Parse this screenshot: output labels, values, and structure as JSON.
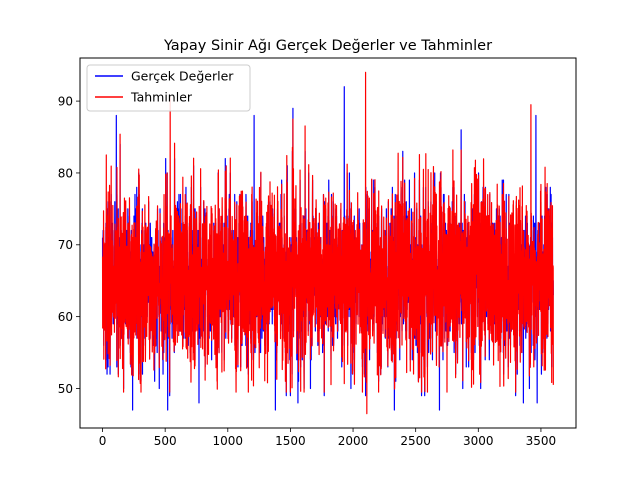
{
  "chart_data": {
    "type": "line",
    "title": "Yapay Sinir Ağı Gerçek Değerler ve Tahminler",
    "xlabel": "",
    "ylabel": "",
    "xlim": [
      -180,
      3780
    ],
    "ylim": [
      44.5,
      96
    ],
    "x_ticks": [
      0,
      500,
      1000,
      1500,
      2000,
      2500,
      3000,
      3500
    ],
    "y_ticks": [
      50,
      60,
      70,
      80,
      90
    ],
    "grid": false,
    "legend": "top-left",
    "n_points": 3600,
    "series": [
      {
        "name": "Gerçek Değerler",
        "color": "#0000ff",
        "mean": 65.5,
        "min": 47,
        "max": 92,
        "extremes": [
          {
            "x": 110,
            "y": 88
          },
          {
            "x": 240,
            "y": 47
          },
          {
            "x": 520,
            "y": 47
          },
          {
            "x": 770,
            "y": 48
          },
          {
            "x": 1210,
            "y": 88
          },
          {
            "x": 1380,
            "y": 47
          },
          {
            "x": 1520,
            "y": 89
          },
          {
            "x": 1560,
            "y": 48
          },
          {
            "x": 1930,
            "y": 92
          },
          {
            "x": 2330,
            "y": 47
          },
          {
            "x": 2690,
            "y": 47
          },
          {
            "x": 3360,
            "y": 48
          },
          {
            "x": 3460,
            "y": 88
          },
          {
            "x": 3470,
            "y": 48
          }
        ]
      },
      {
        "name": "Tahminler",
        "color": "#ff0000",
        "mean": 65.5,
        "min": 46.5,
        "max": 94,
        "extremes": [
          {
            "x": 30,
            "y": 82.5
          },
          {
            "x": 540,
            "y": 90.5
          },
          {
            "x": 1520,
            "y": 87.5
          },
          {
            "x": 2100,
            "y": 94
          },
          {
            "x": 2110,
            "y": 46.5
          },
          {
            "x": 3420,
            "y": 89.5
          },
          {
            "x": 3600,
            "y": 50.5
          }
        ]
      }
    ]
  }
}
